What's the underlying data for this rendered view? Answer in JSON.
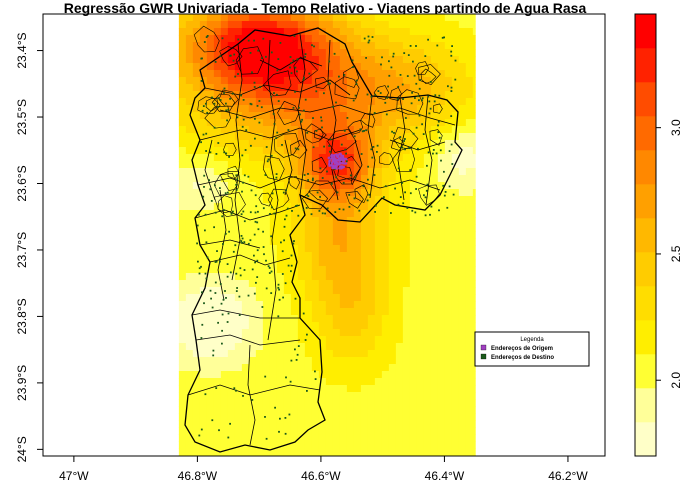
{
  "title": "Regressão GWR Univariada - Tempo Relativo - Viagens partindo de Agua Rasa",
  "x_axis": {
    "ticks": [
      {
        "value": -47.0,
        "label": "47°W"
      },
      {
        "value": -46.8,
        "label": "46.8°W"
      },
      {
        "value": -46.6,
        "label": "46.6°W"
      },
      {
        "value": -46.4,
        "label": "46.4°W"
      },
      {
        "value": -46.2,
        "label": "46.2°W"
      }
    ],
    "range": [
      -47.05,
      -46.14
    ]
  },
  "y_axis": {
    "ticks": [
      {
        "value": -23.4,
        "label": "23.4°S"
      },
      {
        "value": -23.5,
        "label": "23.5°S"
      },
      {
        "value": -23.6,
        "label": "23.6°S"
      },
      {
        "value": -23.7,
        "label": "23.7°S"
      },
      {
        "value": -23.8,
        "label": "23.8°S"
      },
      {
        "value": -23.9,
        "label": "23.9°S"
      },
      {
        "value": -24.0,
        "label": "24°S"
      }
    ],
    "range": [
      -24.01,
      -23.345
    ]
  },
  "raster": {
    "lon_range": [
      -46.83,
      -46.35
    ],
    "lat_range": [
      -24.01,
      -23.345
    ],
    "description_of_surface": "coefficient surface, highest in the north and around the origin"
  },
  "legend": {
    "title": "Legenda",
    "placement": "bottom-right",
    "items": [
      {
        "label": "Endereços de Origem",
        "color": "#a040c0"
      },
      {
        "label": "Endereços de Destino",
        "color": "#1a5a1a"
      }
    ]
  },
  "colorbar": {
    "range": [
      1.7,
      3.45
    ],
    "ticks": [
      {
        "value": 2.0,
        "label": "2.0"
      },
      {
        "value": 2.5,
        "label": "2.5"
      },
      {
        "value": 3.0,
        "label": "3.0"
      }
    ],
    "colors": [
      "#ffffc8",
      "#ffff99",
      "#ffff33",
      "#ffee00",
      "#ffdd00",
      "#ffcc00",
      "#ffb800",
      "#ffa000",
      "#ff8800",
      "#ff6a00",
      "#ff4c00",
      "#ff2200",
      "#ff0000"
    ]
  },
  "chart_data": {
    "type": "heatmap",
    "title": "Regressão GWR Univariada - Tempo Relativo - Viagens partindo de Agua Rasa",
    "xlabel": "",
    "ylabel": "",
    "xlim": [
      -47.05,
      -46.14
    ],
    "ylim": [
      -24.01,
      -23.345
    ],
    "value_range": [
      1.7,
      3.45
    ],
    "origin_point": {
      "lon": -46.575,
      "lat": -23.565
    }
  }
}
